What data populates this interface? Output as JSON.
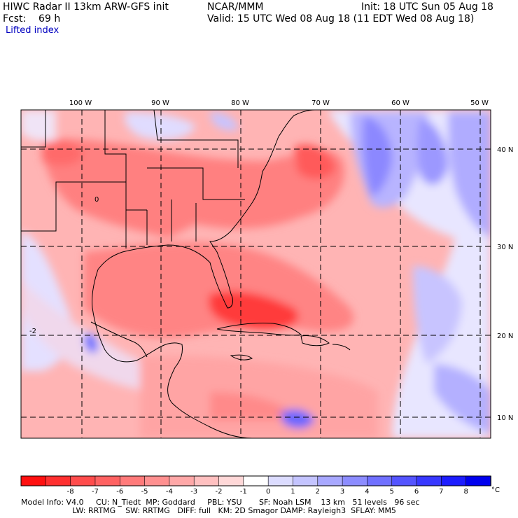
{
  "header": {
    "model": "HIWC Radar II 13km ARW-GFS init",
    "org": "NCAR/MMM",
    "init": "Init: 18 UTC Sun 05 Aug 18",
    "fcst": "Fcst:    69 h",
    "valid": "Valid: 15 UTC Wed 08 Aug 18 (11 EDT Wed 08 Aug 18)",
    "field": "Lifted index"
  },
  "map": {
    "lon_labels": [
      "100 W",
      "90 W",
      "80 W",
      "70 W",
      "60 W",
      "50 W"
    ],
    "lat_labels": [
      "40 N",
      "30 N",
      "20 N",
      "10 N"
    ],
    "contour_labels": [
      "0",
      "-2"
    ]
  },
  "colorbar": {
    "unit": "°C",
    "ticks": [
      "-8",
      "-7",
      "-6",
      "-5",
      "-4",
      "-3",
      "-2",
      "-1",
      "0",
      "1",
      "2",
      "3",
      "4",
      "5",
      "6",
      "7",
      "8"
    ],
    "colors": [
      "#ff1010",
      "#ff3030",
      "#ff4c4c",
      "#ff6262",
      "#ff7a7a",
      "#ff9090",
      "#ffa8a8",
      "#ffc0c0",
      "#ffd8d8",
      "#ffffff",
      "#dcdcff",
      "#c4c4ff",
      "#a8a8ff",
      "#8c8cff",
      "#7070ff",
      "#5454ff",
      "#3838ff",
      "#1c1cff",
      "#0000ee"
    ]
  },
  "footer": {
    "line1": "Model Info: V4.0     CU: N_Tiedt  MP: Goddard     PBL: YSU       SF: Noah LSM    13 km   51 levels   96 sec",
    "line2": "                     LW: RRTMG    SW: RRTMG   DIFF: full   KM: 2D Smagor DAMP: Rayleigh3  SFLAY: MM5"
  }
}
